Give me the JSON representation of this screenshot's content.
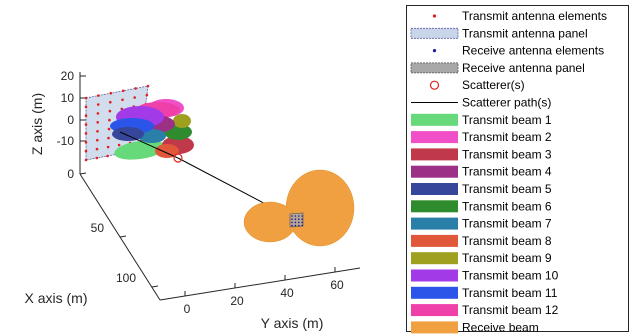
{
  "chart_data": {
    "type": "scatter",
    "view": "3d",
    "xlabel": "X axis (m)",
    "ylabel": "Y axis (m)",
    "zlabel": "Z axis (m)",
    "x_ticks": [
      "0",
      "50",
      "100"
    ],
    "y_ticks": [
      "0",
      "20",
      "40",
      "60"
    ],
    "z_ticks": [
      "20",
      "10",
      "0",
      "-10"
    ],
    "xlim": [
      0,
      120
    ],
    "ylim": [
      -10,
      70
    ],
    "zlim": [
      -15,
      25
    ],
    "grid": false,
    "legend_position": "right",
    "legend": [
      {
        "label": "Transmit antenna elements",
        "kind": "dot",
        "color": "#e02020"
      },
      {
        "label": "Transmit antenna panel",
        "kind": "panel",
        "color": "#c9d6ea",
        "border": "#6060a0"
      },
      {
        "label": "Receive antenna elements",
        "kind": "dot",
        "color": "#1a1aa0"
      },
      {
        "label": "Receive antenna panel",
        "kind": "panel",
        "color": "#a8a8a8",
        "border": "#505050"
      },
      {
        "label": "Scatterer(s)",
        "kind": "circle",
        "color": "#e02020"
      },
      {
        "label": "Scatterer path(s)",
        "kind": "line",
        "color": "#000000"
      },
      {
        "label": "Transmit beam 1",
        "kind": "patch",
        "color": "#66d97a"
      },
      {
        "label": "Transmit beam 2",
        "kind": "patch",
        "color": "#f04fc8"
      },
      {
        "label": "Transmit beam 3",
        "kind": "patch",
        "color": "#c0394a"
      },
      {
        "label": "Transmit beam 4",
        "kind": "patch",
        "color": "#9c2f86"
      },
      {
        "label": "Transmit beam 5",
        "kind": "patch",
        "color": "#36469a"
      },
      {
        "label": "Transmit beam 6",
        "kind": "patch",
        "color": "#2e8b2e"
      },
      {
        "label": "Transmit beam 7",
        "kind": "patch",
        "color": "#2a7fa8"
      },
      {
        "label": "Transmit beam 8",
        "kind": "patch",
        "color": "#e0573a"
      },
      {
        "label": "Transmit beam 9",
        "kind": "patch",
        "color": "#a0a020"
      },
      {
        "label": "Transmit beam 10",
        "kind": "patch",
        "color": "#a23ae8"
      },
      {
        "label": "Transmit beam 11",
        "kind": "patch",
        "color": "#2a55e8"
      },
      {
        "label": "Transmit beam 12",
        "kind": "patch",
        "color": "#ef3fa8"
      },
      {
        "label": "Receive beam",
        "kind": "patch",
        "color": "#f0a040"
      }
    ],
    "scatterer": {
      "x": 10,
      "y": 15,
      "z": -8
    },
    "transmit_panel_center": {
      "x": 0,
      "y": 0,
      "z": 0
    },
    "receive_panel_center": {
      "x": 110,
      "y": 50,
      "z": 0
    }
  }
}
